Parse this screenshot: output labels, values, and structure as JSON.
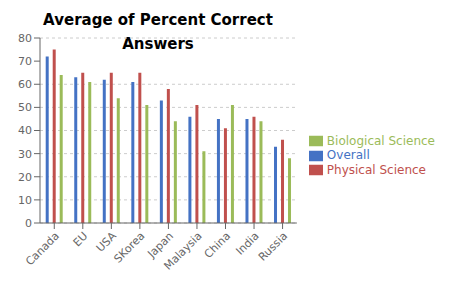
{
  "chart_data": {
    "type": "bar",
    "title": "Average of Percent Correct Answers",
    "categories": [
      "Canada",
      "EU",
      "USA",
      "SKorea",
      "Japan",
      "Malaysia",
      "China",
      "India",
      "Russia"
    ],
    "series": [
      {
        "name": "Overall",
        "color": "#4472C4",
        "values": [
          72,
          63,
          62,
          61,
          53,
          46,
          45,
          45,
          33
        ]
      },
      {
        "name": "Physical Science",
        "color": "#C0504D",
        "values": [
          75,
          65,
          65,
          65,
          58,
          51,
          41,
          46,
          36
        ]
      },
      {
        "name": "Biological Science",
        "color": "#9BBB59",
        "values": [
          64,
          61,
          54,
          51,
          44,
          31,
          51,
          44,
          28
        ]
      }
    ],
    "ylim": [
      0,
      80
    ],
    "yticks": [
      0,
      10,
      20,
      30,
      40,
      50,
      60,
      70,
      80
    ],
    "grid": true,
    "legend": "right"
  }
}
